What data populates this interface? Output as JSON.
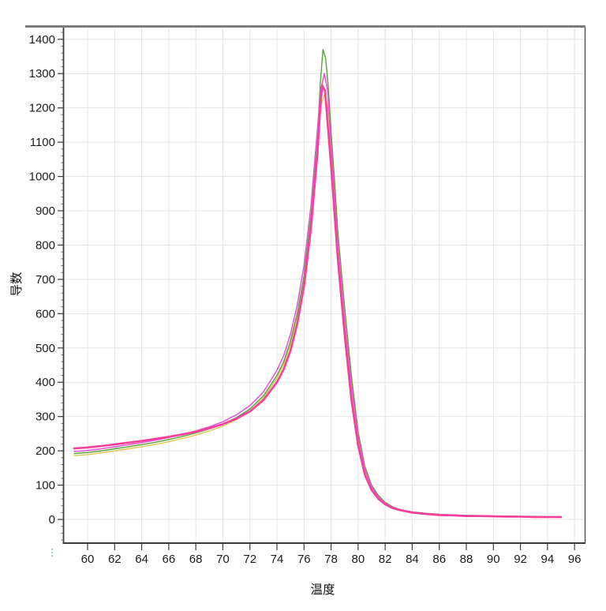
{
  "chart_data": {
    "type": "line",
    "title": "",
    "xlabel": "温度",
    "ylabel": "导数",
    "xlim": [
      58.22,
      96.78
    ],
    "ylim": [
      -69,
      1434
    ],
    "x_ticks": [
      60,
      62,
      64,
      66,
      68,
      70,
      72,
      74,
      76,
      78,
      80,
      82,
      84,
      86,
      88,
      90,
      92,
      94,
      96
    ],
    "y_ticks": [
      0,
      100,
      200,
      300,
      400,
      500,
      600,
      700,
      800,
      900,
      1000,
      1100,
      1200,
      1300,
      1400
    ],
    "y_minor_step": 20,
    "grid": true,
    "legend_position": "none",
    "colors": {
      "grid": "#e4e4e4",
      "axis": "#3c3c3c",
      "top_border": "#7d7d7d",
      "tick_label": "#1c1c1c",
      "stray_mark": "#a9c4e4"
    },
    "series": [
      {
        "name": "yellow-curve",
        "color": "#d9c74f",
        "width": 1.4,
        "points": [
          [
            59,
            186
          ],
          [
            60,
            189
          ],
          [
            61,
            194
          ],
          [
            62,
            200
          ],
          [
            63,
            206
          ],
          [
            64,
            212
          ],
          [
            65,
            219
          ],
          [
            66,
            227
          ],
          [
            67,
            236
          ],
          [
            68,
            246
          ],
          [
            69,
            258
          ],
          [
            70,
            272
          ],
          [
            71,
            291
          ],
          [
            72,
            316
          ],
          [
            73,
            354
          ],
          [
            74,
            412
          ],
          [
            74.5,
            452
          ],
          [
            75,
            510
          ],
          [
            75.5,
            590
          ],
          [
            76,
            700
          ],
          [
            76.5,
            870
          ],
          [
            77,
            1095
          ],
          [
            77.3,
            1215
          ],
          [
            77.55,
            1240
          ],
          [
            77.8,
            1195
          ],
          [
            78,
            1080
          ],
          [
            78.5,
            790
          ],
          [
            79,
            575
          ],
          [
            79.5,
            385
          ],
          [
            80,
            235
          ],
          [
            80.5,
            140
          ],
          [
            81,
            92
          ],
          [
            81.5,
            63
          ],
          [
            82,
            46
          ],
          [
            82.5,
            35
          ],
          [
            83,
            29
          ],
          [
            84,
            21
          ],
          [
            85,
            17
          ],
          [
            86,
            14
          ],
          [
            87,
            12
          ],
          [
            88,
            11
          ],
          [
            89,
            10
          ],
          [
            90,
            9
          ],
          [
            91,
            9
          ],
          [
            92,
            8
          ],
          [
            93,
            8
          ],
          [
            94,
            7
          ],
          [
            95,
            7
          ]
        ]
      },
      {
        "name": "green-curve",
        "color": "#5aa23c",
        "width": 1.4,
        "points": [
          [
            59,
            192
          ],
          [
            60,
            195
          ],
          [
            61,
            200
          ],
          [
            62,
            206
          ],
          [
            63,
            212
          ],
          [
            64,
            218
          ],
          [
            65,
            225
          ],
          [
            66,
            233
          ],
          [
            67,
            242
          ],
          [
            68,
            252
          ],
          [
            69,
            264
          ],
          [
            70,
            278
          ],
          [
            71,
            297
          ],
          [
            72,
            322
          ],
          [
            73,
            360
          ],
          [
            74,
            420
          ],
          [
            74.5,
            460
          ],
          [
            75,
            520
          ],
          [
            75.5,
            600
          ],
          [
            76,
            710
          ],
          [
            76.5,
            880
          ],
          [
            77,
            1120
          ],
          [
            77.2,
            1270
          ],
          [
            77.4,
            1370
          ],
          [
            77.6,
            1345
          ],
          [
            77.8,
            1260
          ],
          [
            78,
            1130
          ],
          [
            78.25,
            990
          ],
          [
            78.5,
            840
          ],
          [
            79,
            620
          ],
          [
            79.5,
            420
          ],
          [
            80,
            255
          ],
          [
            80.5,
            155
          ],
          [
            81,
            100
          ],
          [
            81.5,
            70
          ],
          [
            82,
            50
          ],
          [
            82.5,
            38
          ],
          [
            83,
            30
          ],
          [
            84,
            22
          ],
          [
            85,
            18
          ],
          [
            86,
            15
          ],
          [
            87,
            13
          ],
          [
            88,
            12
          ],
          [
            89,
            11
          ],
          [
            90,
            10
          ],
          [
            91,
            10
          ],
          [
            92,
            9
          ],
          [
            93,
            9
          ],
          [
            94,
            8
          ],
          [
            95,
            8
          ]
        ]
      },
      {
        "name": "violet-curve",
        "color": "#e25ad8",
        "width": 1.6,
        "points": [
          [
            59,
            198
          ],
          [
            60,
            201
          ],
          [
            61,
            206
          ],
          [
            62,
            212
          ],
          [
            63,
            218
          ],
          [
            64,
            224
          ],
          [
            65,
            231
          ],
          [
            66,
            239
          ],
          [
            67,
            248
          ],
          [
            68,
            258
          ],
          [
            69,
            270
          ],
          [
            70,
            285
          ],
          [
            71,
            305
          ],
          [
            72,
            332
          ],
          [
            73,
            372
          ],
          [
            74,
            435
          ],
          [
            74.5,
            478
          ],
          [
            75,
            540
          ],
          [
            75.5,
            625
          ],
          [
            76,
            740
          ],
          [
            76.5,
            910
          ],
          [
            77,
            1140
          ],
          [
            77.25,
            1255
          ],
          [
            77.5,
            1300
          ],
          [
            77.75,
            1250
          ],
          [
            78,
            1090
          ],
          [
            78.5,
            800
          ],
          [
            79,
            580
          ],
          [
            79.5,
            390
          ],
          [
            80,
            240
          ],
          [
            80.5,
            145
          ],
          [
            81,
            95
          ],
          [
            81.5,
            65
          ],
          [
            82,
            47
          ],
          [
            82.5,
            36
          ],
          [
            83,
            29
          ],
          [
            84,
            21
          ],
          [
            85,
            17
          ],
          [
            86,
            14
          ],
          [
            87,
            13
          ],
          [
            88,
            11
          ],
          [
            89,
            10
          ],
          [
            90,
            9
          ],
          [
            91,
            9
          ],
          [
            92,
            8
          ],
          [
            93,
            8
          ],
          [
            94,
            7
          ],
          [
            95,
            7
          ]
        ]
      },
      {
        "name": "pink-curve",
        "color": "#fb3e9b",
        "width": 2.6,
        "points": [
          [
            59,
            207
          ],
          [
            60,
            210
          ],
          [
            61,
            214
          ],
          [
            62,
            219
          ],
          [
            63,
            224
          ],
          [
            64,
            229
          ],
          [
            65,
            235
          ],
          [
            66,
            241
          ],
          [
            67,
            248
          ],
          [
            68,
            256
          ],
          [
            69,
            266
          ],
          [
            70,
            278
          ],
          [
            71,
            294
          ],
          [
            72,
            315
          ],
          [
            73,
            348
          ],
          [
            74,
            400
          ],
          [
            74.5,
            438
          ],
          [
            75,
            492
          ],
          [
            75.5,
            570
          ],
          [
            76,
            680
          ],
          [
            76.5,
            845
          ],
          [
            77,
            1070
          ],
          [
            77.2,
            1205
          ],
          [
            77.35,
            1265
          ],
          [
            77.55,
            1250
          ],
          [
            77.8,
            1130
          ],
          [
            78,
            1030
          ],
          [
            78.5,
            760
          ],
          [
            79,
            540
          ],
          [
            79.5,
            350
          ],
          [
            80,
            215
          ],
          [
            80.5,
            130
          ],
          [
            81,
            85
          ],
          [
            81.5,
            60
          ],
          [
            82,
            44
          ],
          [
            82.5,
            34
          ],
          [
            83,
            28
          ],
          [
            84,
            20
          ],
          [
            85,
            16
          ],
          [
            86,
            13
          ],
          [
            87,
            12
          ],
          [
            88,
            10
          ],
          [
            89,
            10
          ],
          [
            90,
            9
          ],
          [
            91,
            8
          ],
          [
            92,
            8
          ],
          [
            93,
            7
          ],
          [
            94,
            7
          ],
          [
            95,
            7
          ]
        ]
      }
    ]
  }
}
